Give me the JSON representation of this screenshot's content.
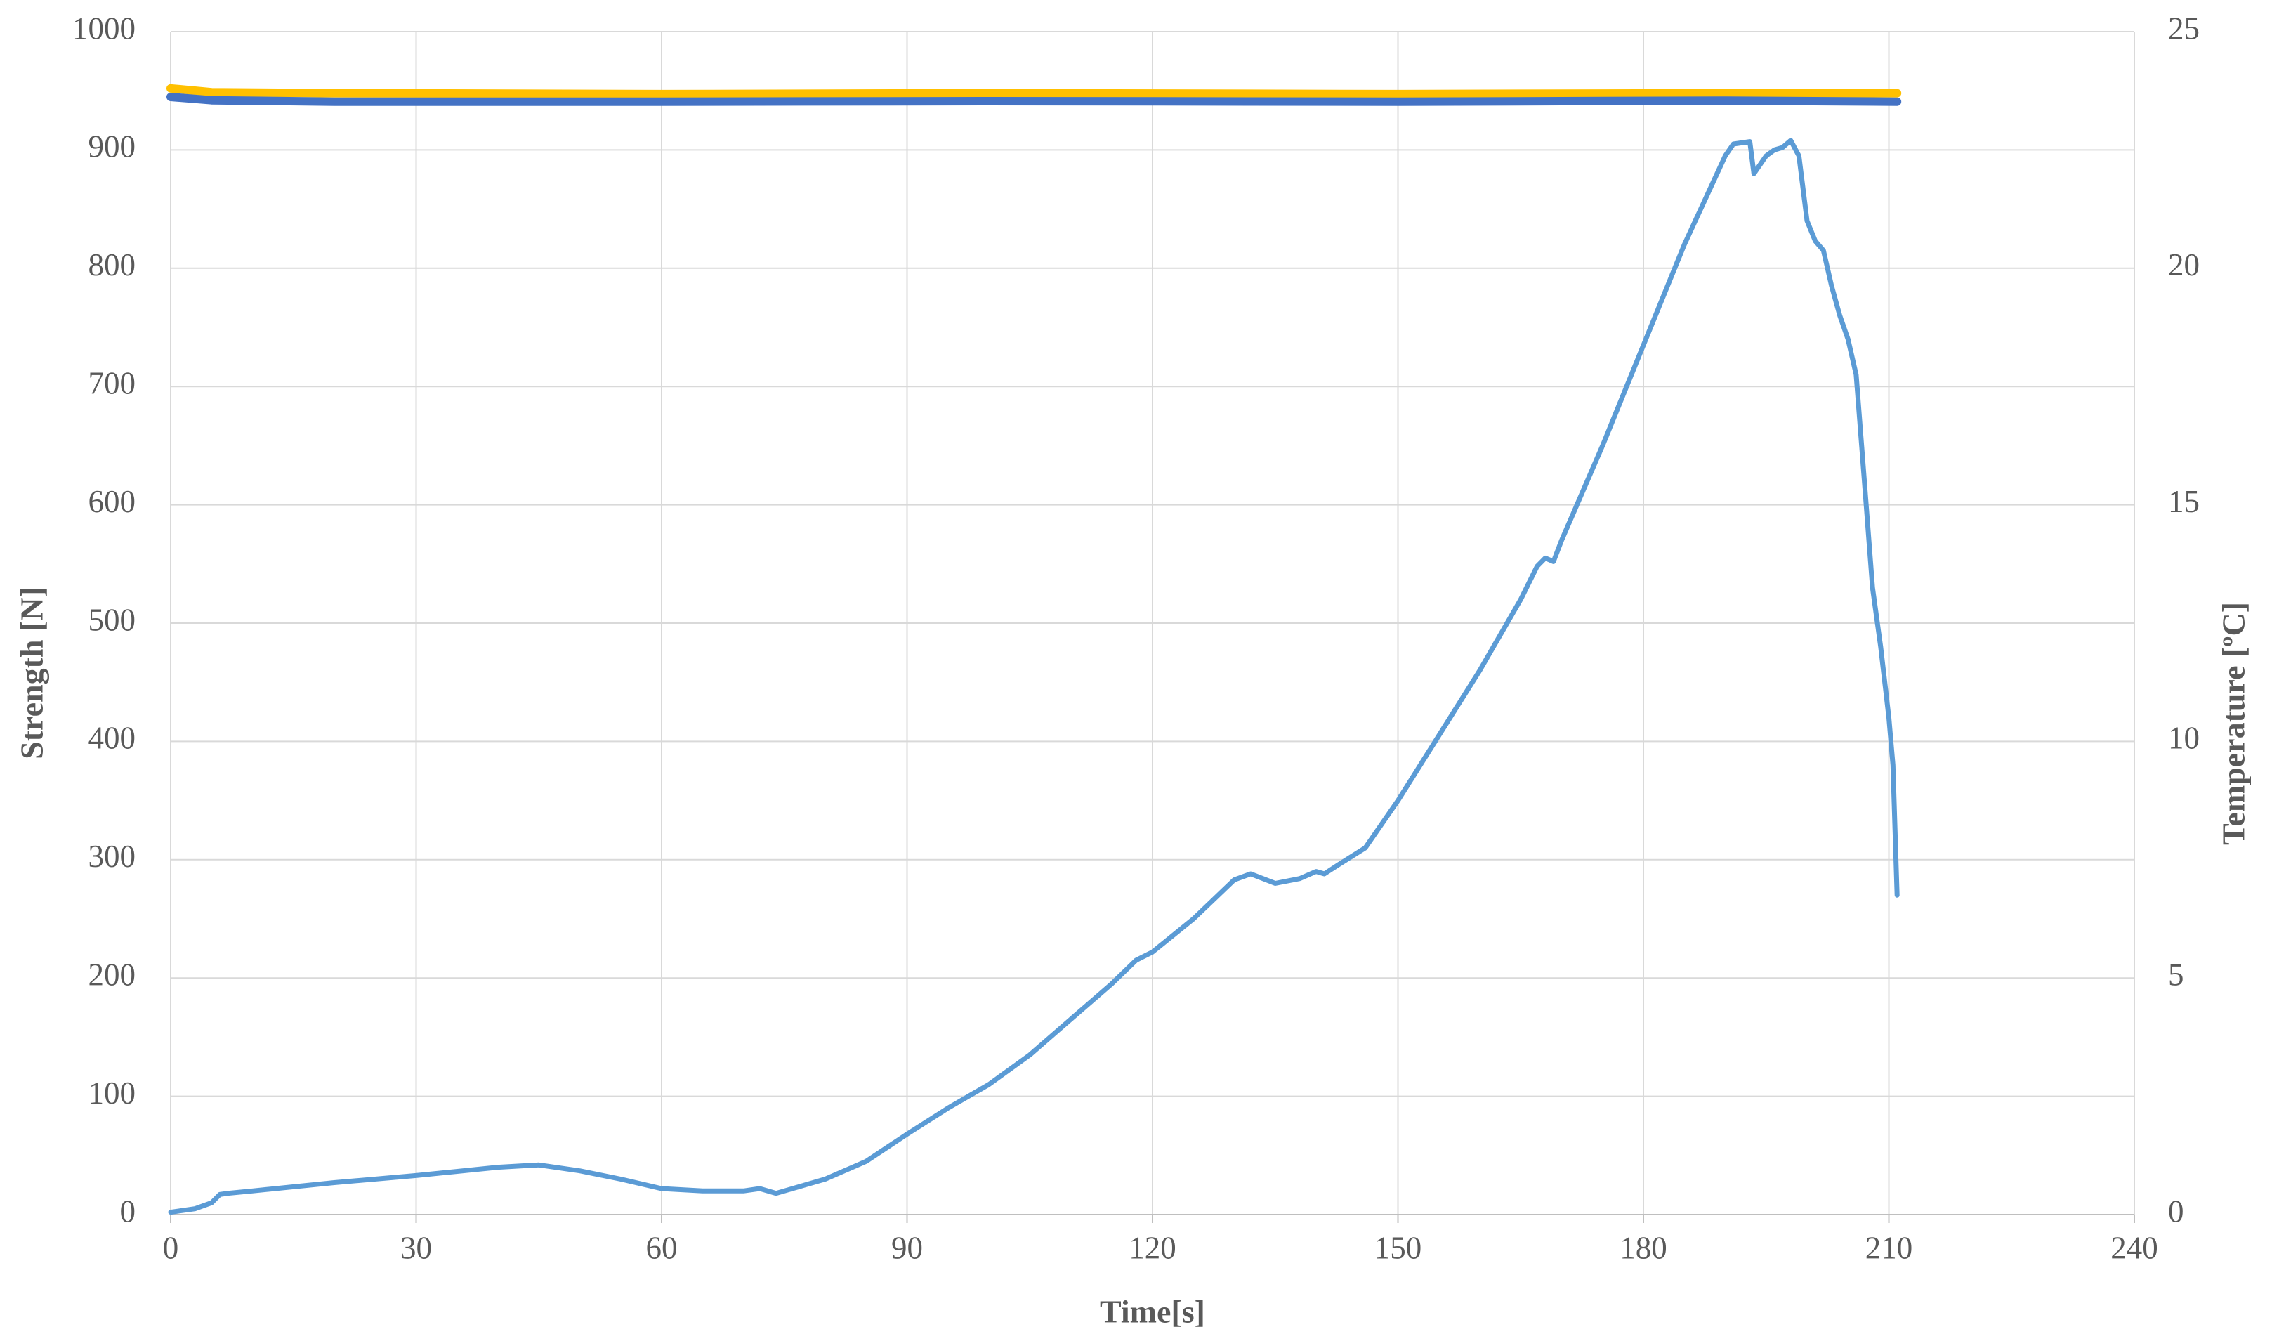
{
  "chart_data": {
    "type": "line",
    "x_label": "Time[s]",
    "y_label": "Strength [N]",
    "y2_label": "Temperature [ºC]",
    "xlim": [
      0,
      240
    ],
    "xticks": [
      0,
      30,
      60,
      90,
      120,
      150,
      180,
      210,
      240
    ],
    "ylim": [
      0,
      1000
    ],
    "yticks": [
      0,
      100,
      200,
      300,
      400,
      500,
      600,
      700,
      800,
      900,
      1000
    ],
    "y2lim": [
      0,
      25
    ],
    "y2ticks": [
      0,
      5,
      10,
      15,
      20,
      25
    ],
    "grid": true,
    "series": [
      {
        "color": "#ffc000",
        "axis": "y2",
        "x": [
          0,
          5,
          20,
          60,
          100,
          150,
          190,
          211
        ],
        "values": [
          23.8,
          23.72,
          23.7,
          23.68,
          23.7,
          23.68,
          23.7,
          23.7
        ]
      },
      {
        "color": "#4472c4",
        "axis": "y2",
        "x": [
          0,
          5,
          20,
          60,
          100,
          150,
          190,
          211
        ],
        "values": [
          23.62,
          23.55,
          23.52,
          23.52,
          23.53,
          23.52,
          23.54,
          23.52
        ]
      },
      {
        "color": "#5b9bd5",
        "x": [
          0,
          3,
          5,
          6,
          7,
          10,
          20,
          30,
          40,
          45,
          50,
          55,
          60,
          65,
          70,
          72,
          74,
          80,
          85,
          90,
          95,
          100,
          105,
          110,
          115,
          118,
          120,
          125,
          130,
          132,
          135,
          138,
          140,
          141,
          143,
          146,
          150,
          155,
          160,
          165,
          167,
          168,
          169,
          170,
          175,
          180,
          185,
          190,
          191,
          193,
          193.5,
          195,
          196,
          197,
          198,
          199,
          200,
          201,
          202,
          203,
          204,
          205,
          206,
          207,
          208,
          209,
          210,
          210.5,
          211
        ],
        "values": [
          2,
          5,
          10,
          17,
          18,
          20,
          27,
          33,
          40,
          42,
          37,
          30,
          22,
          20,
          20,
          22,
          18,
          30,
          45,
          68,
          90,
          110,
          135,
          165,
          195,
          215,
          222,
          250,
          283,
          288,
          280,
          284,
          290,
          288,
          297,
          310,
          350,
          405,
          460,
          520,
          548,
          555,
          552,
          570,
          650,
          735,
          820,
          895,
          905,
          907,
          880,
          895,
          900,
          902,
          908,
          895,
          840,
          823,
          815,
          785,
          760,
          740,
          710,
          620,
          530,
          480,
          420,
          380,
          270
        ]
      }
    ]
  }
}
